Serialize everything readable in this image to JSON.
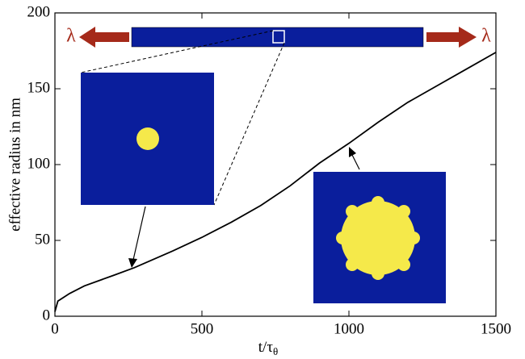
{
  "chart_data": {
    "type": "line",
    "x_label": "t/τ",
    "x_label_subscript": "θ",
    "y_label": "effective radius in nm",
    "annotations": [
      "λ",
      "λ"
    ],
    "x": [
      0,
      10,
      50,
      100,
      200,
      270,
      400,
      500,
      600,
      700,
      800,
      900,
      1000,
      1100,
      1200,
      1300,
      1400,
      1500
    ],
    "series": [
      {
        "color": "#000000",
        "values": [
          3,
          10,
          15,
          20,
          27,
          32,
          43,
          52,
          62,
          73,
          86,
          101,
          114,
          128,
          141,
          152,
          163,
          174
        ]
      }
    ],
    "xlim": [
      0,
      1500
    ],
    "xticks": [
      0,
      500,
      1000,
      1500
    ],
    "ylim": [
      0,
      200
    ],
    "yticks": [
      0,
      50,
      100,
      150,
      200
    ]
  }
}
